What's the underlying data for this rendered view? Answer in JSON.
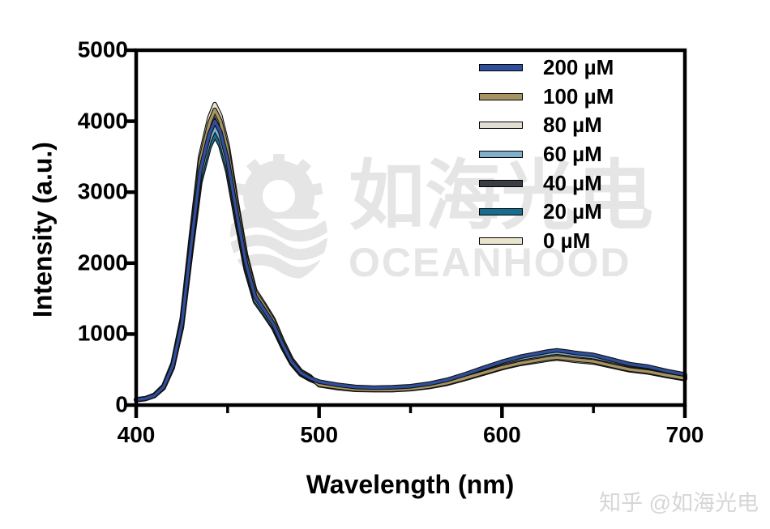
{
  "watermark_center": {
    "cn_text": "如海光电",
    "en_text": "OCEANHOOD",
    "color": "#e5e5e5"
  },
  "watermark_corner": {
    "text": "知乎 @如海光电",
    "color": "#d6d6d6"
  },
  "axes": {
    "x_title": "Wavelength (nm)",
    "y_title": "Intensity (a.u.)"
  },
  "chart_data": {
    "type": "line",
    "title": "",
    "xlabel": "Wavelength (nm)",
    "ylabel": "Intensity (a.u.)",
    "xlim": [
      400,
      700
    ],
    "ylim": [
      0,
      5000
    ],
    "x_ticks": [
      400,
      500,
      600,
      700
    ],
    "x_minor_ticks": [
      450,
      550,
      650
    ],
    "y_ticks": [
      0,
      1000,
      2000,
      3000,
      4000,
      5000
    ],
    "grid": false,
    "frame": true,
    "legend_position": "inside top-right",
    "axis_color": "#000000",
    "x": [
      400,
      405,
      410,
      415,
      420,
      425,
      430,
      435,
      440,
      443,
      446,
      450,
      455,
      460,
      465,
      470,
      475,
      480,
      485,
      490,
      495,
      500,
      510,
      520,
      530,
      540,
      550,
      560,
      570,
      580,
      590,
      600,
      610,
      620,
      625,
      630,
      635,
      640,
      650,
      660,
      670,
      680,
      690,
      700
    ],
    "series": [
      {
        "name": "200 µM",
        "color": "#2f4f9d",
        "values": [
          75,
          90,
          135,
          255,
          555,
          1150,
          2250,
          3300,
          3820,
          4000,
          3850,
          3450,
          2700,
          2000,
          1530,
          1340,
          1140,
          860,
          610,
          455,
          380,
          330,
          285,
          255,
          245,
          250,
          265,
          300,
          355,
          435,
          525,
          610,
          680,
          730,
          755,
          770,
          755,
          735,
          705,
          640,
          575,
          540,
          480,
          430
        ]
      },
      {
        "name": "100 µM",
        "color": "#a79463",
        "values": [
          78,
          94,
          140,
          265,
          575,
          1195,
          2340,
          3430,
          3970,
          4160,
          4005,
          3590,
          2810,
          2080,
          1590,
          1395,
          1185,
          895,
          635,
          475,
          395,
          285,
          250,
          220,
          215,
          215,
          230,
          260,
          310,
          380,
          455,
          530,
          590,
          635,
          655,
          670,
          655,
          640,
          615,
          555,
          500,
          470,
          420,
          375
        ]
      },
      {
        "name": "80 µM",
        "color": "#e0ddd3",
        "values": [
          77,
          93,
          140,
          260,
          570,
          1185,
          2320,
          3400,
          3935,
          4120,
          3965,
          3555,
          2780,
          2060,
          1575,
          1380,
          1175,
          885,
          630,
          470,
          390,
          295,
          255,
          225,
          220,
          220,
          235,
          265,
          315,
          385,
          465,
          545,
          605,
          650,
          670,
          685,
          670,
          655,
          625,
          570,
          510,
          480,
          425,
          385
        ]
      },
      {
        "name": "60 µM",
        "color": "#7fafcb",
        "values": [
          73,
          88,
          130,
          250,
          540,
          1120,
          2195,
          3220,
          3725,
          3900,
          3755,
          3365,
          2630,
          1950,
          1490,
          1305,
          1110,
          840,
          595,
          445,
          370,
          315,
          275,
          245,
          235,
          240,
          255,
          290,
          340,
          420,
          505,
          585,
          655,
          700,
          725,
          740,
          725,
          705,
          675,
          615,
          550,
          520,
          460,
          415
        ]
      },
      {
        "name": "40 µM",
        "color": "#3a3e44",
        "values": [
          76,
          91,
          135,
          260,
          565,
          1165,
          2285,
          3350,
          3875,
          4060,
          3910,
          3500,
          2740,
          2030,
          1555,
          1360,
          1155,
          875,
          620,
          460,
          385,
          300,
          260,
          230,
          225,
          230,
          240,
          275,
          325,
          395,
          480,
          555,
          620,
          665,
          685,
          700,
          685,
          670,
          640,
          580,
          525,
          490,
          435,
          390
        ]
      },
      {
        "name": "20 µM",
        "color": "#156e8e",
        "values": [
          70,
          85,
          130,
          240,
          525,
          1095,
          2140,
          3135,
          3630,
          3800,
          3660,
          3280,
          2565,
          1900,
          1455,
          1275,
          1085,
          815,
          580,
          430,
          360,
          305,
          265,
          235,
          230,
          230,
          245,
          280,
          330,
          405,
          490,
          565,
          630,
          680,
          700,
          715,
          700,
          685,
          655,
          595,
          535,
          500,
          445,
          400
        ]
      },
      {
        "name": "0 µM",
        "color": "#e9e5cc",
        "values": [
          80,
          95,
          145,
          270,
          590,
          1220,
          2390,
          3500,
          4050,
          4240,
          4080,
          3660,
          2860,
          2120,
          1620,
          1420,
          1210,
          910,
          645,
          480,
          405,
          280,
          240,
          215,
          210,
          210,
          225,
          255,
          300,
          370,
          445,
          520,
          580,
          620,
          640,
          655,
          640,
          625,
          600,
          545,
          490,
          460,
          410,
          365
        ]
      }
    ]
  }
}
